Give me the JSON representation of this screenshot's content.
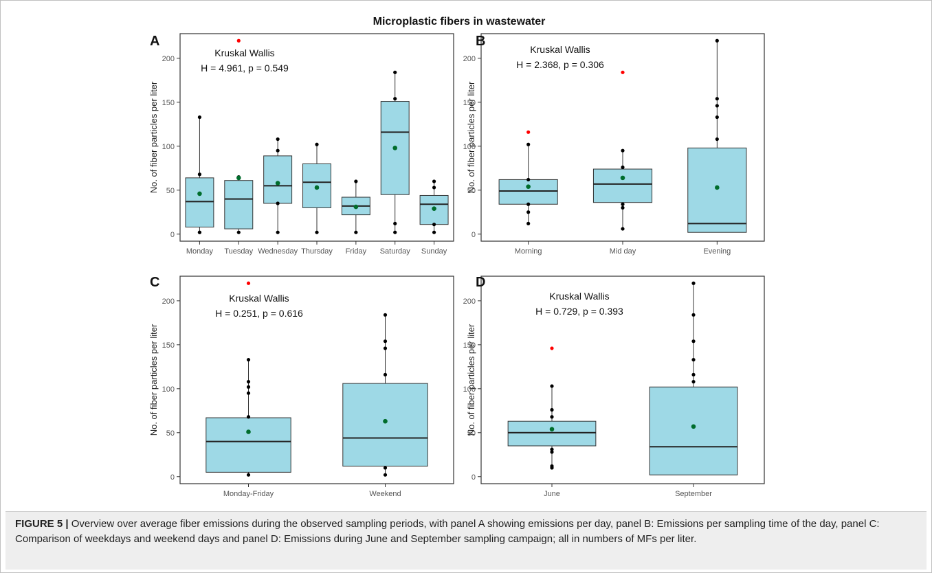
{
  "figure_title": "Microplastic fibers in wastewater",
  "caption": {
    "label": "FIGURE 5 |",
    "text": " Overview over average fiber emissions during the observed sampling periods, with panel A showing emissions per day, panel B: Emissions per sampling time of the day, panel C: Comparison of weekdays and weekend days and panel D: Emissions during June and September sampling campaign; all in numbers of MFs per liter."
  },
  "colors": {
    "box_fill": "#9ed9e6",
    "box_stroke": "#333333",
    "point": "#000000",
    "outlier": "#ff0000",
    "mean": "#006d2c"
  },
  "chart_data": [
    {
      "type": "boxplot",
      "panel_label": "A",
      "ylabel": "No. of fiber particles per liter",
      "ylim": [
        -8,
        228
      ],
      "yticks": [
        0,
        50,
        100,
        150,
        200
      ],
      "annotation": [
        "Kruskal Wallis",
        "H = 4.961, p = 0.549"
      ],
      "categories": [
        "Monday",
        "Tuesday",
        "Wednesday",
        "Thursday",
        "Friday",
        "Saturday",
        "Sunday"
      ],
      "boxes": [
        {
          "q1": 8,
          "median": 37,
          "q3": 64,
          "whisker_low": 2,
          "whisker_high": 133,
          "mean": 46,
          "points": [
            2,
            2,
            68,
            133
          ],
          "outliers": []
        },
        {
          "q1": 6,
          "median": 40,
          "q3": 61,
          "whisker_low": 2,
          "whisker_high": 65,
          "mean": 64,
          "points": [
            2,
            65
          ],
          "outliers": [
            220
          ]
        },
        {
          "q1": 35,
          "median": 55,
          "q3": 89,
          "whisker_low": 2,
          "whisker_high": 108,
          "mean": 58,
          "points": [
            2,
            35,
            95,
            108
          ],
          "outliers": []
        },
        {
          "q1": 30,
          "median": 59,
          "q3": 80,
          "whisker_low": 2,
          "whisker_high": 102,
          "mean": 53,
          "points": [
            2,
            102
          ],
          "outliers": []
        },
        {
          "q1": 22,
          "median": 32,
          "q3": 42,
          "whisker_low": 2,
          "whisker_high": 60,
          "mean": 31,
          "points": [
            2,
            60
          ],
          "outliers": []
        },
        {
          "q1": 45,
          "median": 116,
          "q3": 151,
          "whisker_low": 2,
          "whisker_high": 184,
          "mean": 98,
          "points": [
            2,
            12,
            154,
            184
          ],
          "outliers": []
        },
        {
          "q1": 11,
          "median": 34,
          "q3": 44,
          "whisker_low": 2,
          "whisker_high": 60,
          "mean": 29,
          "points": [
            2,
            11,
            53,
            60
          ],
          "outliers": []
        }
      ]
    },
    {
      "type": "boxplot",
      "panel_label": "B",
      "ylabel": "No. of fiber particles per liter",
      "ylim": [
        -8,
        228
      ],
      "yticks": [
        0,
        50,
        100,
        150,
        200
      ],
      "annotation": [
        "Kruskal Wallis",
        "H = 2.368, p = 0.306"
      ],
      "categories": [
        "Morning",
        "Mid day",
        "Evening"
      ],
      "boxes": [
        {
          "q1": 34,
          "median": 49,
          "q3": 62,
          "whisker_low": 12,
          "whisker_high": 102,
          "mean": 54,
          "points": [
            12,
            25,
            34,
            62,
            102
          ],
          "outliers": [
            116
          ]
        },
        {
          "q1": 36,
          "median": 57,
          "q3": 74,
          "whisker_low": 6,
          "whisker_high": 95,
          "mean": 64,
          "points": [
            6,
            30,
            34,
            76,
            95
          ],
          "outliers": [
            184
          ]
        },
        {
          "q1": 2,
          "median": 12,
          "q3": 98,
          "whisker_low": 2,
          "whisker_high": 220,
          "mean": 53,
          "points": [
            108,
            133,
            146,
            154,
            220
          ],
          "outliers": []
        }
      ]
    },
    {
      "type": "boxplot",
      "panel_label": "C",
      "ylabel": "No. of fiber particles per liter",
      "ylim": [
        -8,
        228
      ],
      "yticks": [
        0,
        50,
        100,
        150,
        200
      ],
      "annotation": [
        "Kruskal Wallis",
        "H = 0.251, p = 0.616"
      ],
      "categories": [
        "Monday-Friday",
        "Weekend"
      ],
      "boxes": [
        {
          "q1": 5,
          "median": 40,
          "q3": 67,
          "whisker_low": 2,
          "whisker_high": 133,
          "mean": 51,
          "points": [
            2,
            68,
            95,
            102,
            108,
            133
          ],
          "outliers": [
            220
          ]
        },
        {
          "q1": 12,
          "median": 44,
          "q3": 106,
          "whisker_low": 2,
          "whisker_high": 184,
          "mean": 63,
          "points": [
            2,
            10,
            116,
            146,
            154,
            184
          ],
          "outliers": []
        }
      ]
    },
    {
      "type": "boxplot",
      "panel_label": "D",
      "ylabel": "No. of fiber particles per liter",
      "ylim": [
        -8,
        228
      ],
      "yticks": [
        0,
        50,
        100,
        150,
        200
      ],
      "annotation": [
        "Kruskal Wallis",
        "H = 0.729, p = 0.393"
      ],
      "categories": [
        "June",
        "September"
      ],
      "boxes": [
        {
          "q1": 35,
          "median": 50,
          "q3": 63,
          "whisker_low": 10,
          "whisker_high": 103,
          "mean": 54,
          "points": [
            10,
            12,
            28,
            31,
            68,
            76,
            103
          ],
          "outliers": [
            146
          ]
        },
        {
          "q1": 2,
          "median": 34,
          "q3": 102,
          "whisker_low": 2,
          "whisker_high": 220,
          "mean": 57,
          "points": [
            108,
            116,
            133,
            154,
            184,
            220
          ],
          "outliers": []
        }
      ]
    }
  ]
}
